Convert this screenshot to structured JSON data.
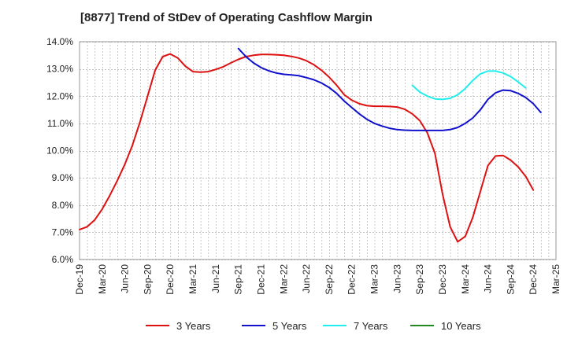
{
  "chart_data": {
    "type": "line",
    "title": "[8877]  Trend of StDev of Operating Cashflow Margin",
    "xlabel": "",
    "ylabel": "",
    "ylim": [
      6.0,
      14.0
    ],
    "y_tick_values": [
      6.0,
      7.0,
      8.0,
      9.0,
      10.0,
      11.0,
      12.0,
      13.0,
      14.0
    ],
    "y_tick_labels": [
      "6.0%",
      "7.0%",
      "8.0%",
      "9.0%",
      "10.0%",
      "11.0%",
      "12.0%",
      "13.0%",
      "14.0%"
    ],
    "x_start": "Dec-19",
    "x_tick_labels": [
      "Dec-19",
      "Mar-20",
      "Jun-20",
      "Sep-20",
      "Dec-20",
      "Mar-21",
      "Jun-21",
      "Sep-21",
      "Dec-21",
      "Mar-22",
      "Jun-22",
      "Sep-22",
      "Dec-22",
      "Mar-23",
      "Jun-23",
      "Sep-23",
      "Dec-23",
      "Mar-24",
      "Jun-24",
      "Sep-24",
      "Dec-24",
      "Mar-25"
    ],
    "grid": true,
    "legend_position": "bottom",
    "series": [
      {
        "name": "3 Years",
        "color": "#dd1111",
        "x_start": "Dec-19",
        "values": [
          7.1,
          7.2,
          7.45,
          7.85,
          8.35,
          8.9,
          9.5,
          10.2,
          11.05,
          12.0,
          12.95,
          13.45,
          13.55,
          13.4,
          13.1,
          12.9,
          12.88,
          12.9,
          12.98,
          13.08,
          13.22,
          13.35,
          13.45,
          13.5,
          13.53,
          13.53,
          13.52,
          13.5,
          13.46,
          13.4,
          13.3,
          13.15,
          12.95,
          12.7,
          12.4,
          12.05,
          11.85,
          11.72,
          11.65,
          11.63,
          11.63,
          11.62,
          11.6,
          11.52,
          11.35,
          11.1,
          10.65,
          9.9,
          8.4,
          7.2,
          6.65,
          6.85,
          7.55,
          8.5,
          9.45,
          9.8,
          9.82,
          9.65,
          9.4,
          9.05,
          8.55
        ]
      },
      {
        "name": "5 Years",
        "color": "#1111cc",
        "x_start": "Sep-21",
        "values": [
          13.75,
          13.45,
          13.22,
          13.05,
          12.93,
          12.85,
          12.8,
          12.78,
          12.75,
          12.68,
          12.6,
          12.48,
          12.32,
          12.1,
          11.82,
          11.58,
          11.35,
          11.15,
          11.0,
          10.9,
          10.82,
          10.77,
          10.75,
          10.74,
          10.74,
          10.74,
          10.74,
          10.74,
          10.77,
          10.85,
          11.0,
          11.2,
          11.5,
          11.88,
          12.12,
          12.22,
          12.2,
          12.1,
          11.95,
          11.72,
          11.4
        ]
      },
      {
        "name": "7 Years",
        "color": "#22eeee",
        "x_start": "Aug-23",
        "values": [
          12.4,
          12.15,
          12.0,
          11.9,
          11.88,
          11.92,
          12.05,
          12.28,
          12.58,
          12.82,
          12.92,
          12.92,
          12.85,
          12.72,
          12.52,
          12.3
        ]
      },
      {
        "name": "10 Years",
        "color": "#228822",
        "x_start": "Dec-19",
        "values": []
      }
    ]
  }
}
